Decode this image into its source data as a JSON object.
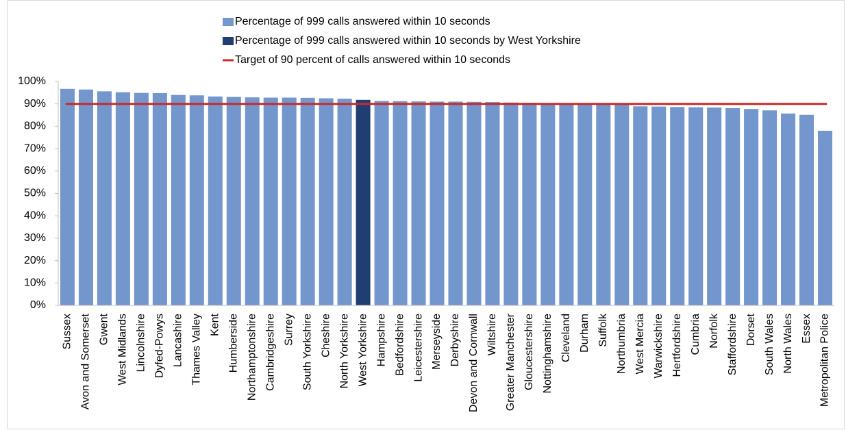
{
  "chart_data": {
    "type": "bar",
    "categories": [
      "Sussex",
      "Avon and Somerset",
      "Gwent",
      "West Midlands",
      "Lincolnshire",
      "Dyfed-Powys",
      "Lancashire",
      "Thames Valley",
      "Kent",
      "Humberside",
      "Northamptonshire",
      "Cambridgeshire",
      "Surrey",
      "South Yorkshire",
      "Cheshire",
      "North Yorkshire",
      "West Yorkshire",
      "Hampshire",
      "Bedfordshire",
      "Leicestershire",
      "Merseyside",
      "Derbyshire",
      "Devon and Cornwall",
      "Wiltshire",
      "Greater Manchester",
      "Gloucestershire",
      "Nottinghamshire",
      "Cleveland",
      "Durham",
      "Suffolk",
      "Northumbria",
      "West Mercia",
      "Warwickshire",
      "Hertfordshire",
      "Cumbria",
      "Norfolk",
      "Staffordshire",
      "Dorset",
      "South Wales",
      "North Wales",
      "Essex",
      "Metropolitan Police"
    ],
    "series": [
      {
        "name": "Percentage of 999 calls answered within 10 seconds",
        "color": "#7396cc",
        "values": [
          96.7,
          96.4,
          95.6,
          95.2,
          94.9,
          94.8,
          94.0,
          93.8,
          93.3,
          93.1,
          92.9,
          92.8,
          92.8,
          92.7,
          92.5,
          92.3,
          null,
          91.3,
          91.2,
          91.1,
          91.0,
          91.0,
          90.9,
          90.8,
          90.6,
          90.5,
          90.3,
          90.1,
          90.1,
          90.0,
          89.9,
          88.9,
          88.8,
          88.6,
          88.5,
          88.4,
          88.1,
          87.7,
          87.1,
          85.7,
          85.1,
          78.0
        ]
      },
      {
        "name": "Percentage of 999 calls answered within 10 seconds by West Yorkshire",
        "color": "#1f3f73",
        "values": [
          null,
          null,
          null,
          null,
          null,
          null,
          null,
          null,
          null,
          null,
          null,
          null,
          null,
          null,
          null,
          null,
          91.8,
          null,
          null,
          null,
          null,
          null,
          null,
          null,
          null,
          null,
          null,
          null,
          null,
          null,
          null,
          null,
          null,
          null,
          null,
          null,
          null,
          null,
          null,
          null,
          null,
          null
        ]
      }
    ],
    "target": {
      "name": "Target of 90 percent of calls answered within 10 seconds",
      "value": 90,
      "color": "#cc2929"
    },
    "ylim": [
      0,
      100
    ],
    "yticks": [
      {
        "value": 0,
        "label": "0%"
      },
      {
        "value": 10,
        "label": "10%"
      },
      {
        "value": 20,
        "label": "20%"
      },
      {
        "value": 30,
        "label": "30%"
      },
      {
        "value": 40,
        "label": "40%"
      },
      {
        "value": 50,
        "label": "50%"
      },
      {
        "value": 60,
        "label": "60%"
      },
      {
        "value": 70,
        "label": "70%"
      },
      {
        "value": 80,
        "label": "80%"
      },
      {
        "value": 90,
        "label": "90%"
      },
      {
        "value": 100,
        "label": "100%"
      }
    ],
    "grid": false,
    "legend": "top"
  }
}
